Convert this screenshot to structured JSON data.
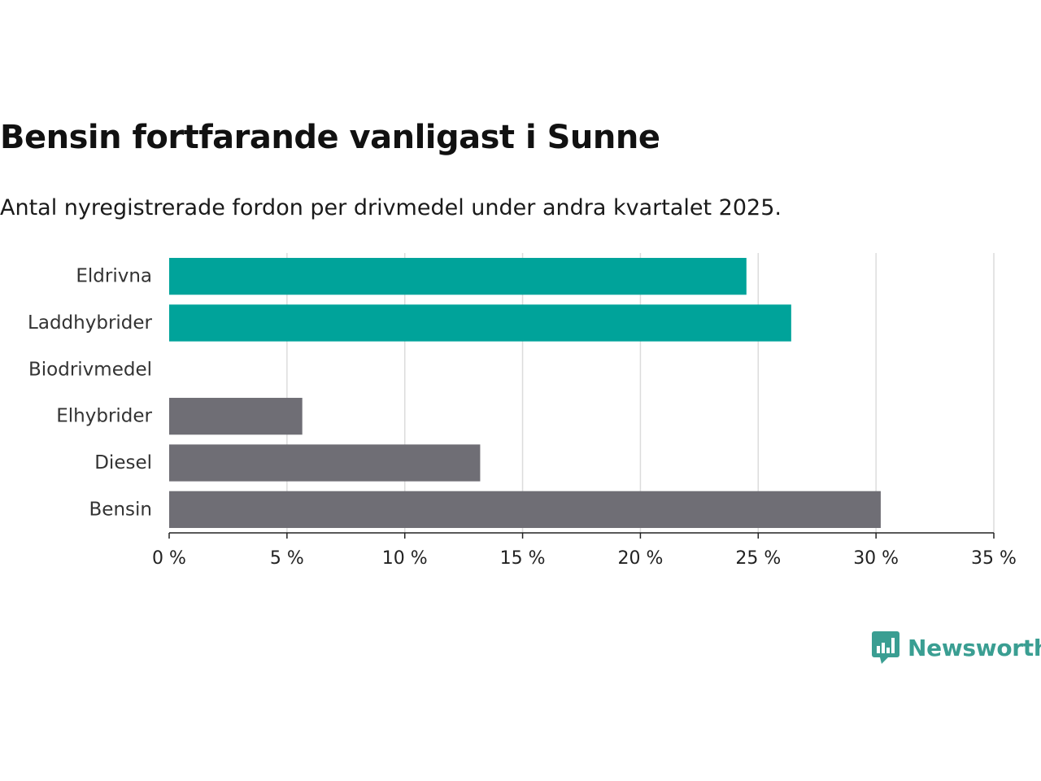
{
  "header": {
    "title": "Bensin fortfarande vanligast i Sunne",
    "subtitle": "Antal nyregistrerade fordon per drivmedel under andra kvartalet 2025."
  },
  "brand": {
    "name": "Newsworthy",
    "color": "#3a9e92",
    "icon": "bar-chart-speech-bubble-icon"
  },
  "chart_data": {
    "type": "bar",
    "orientation": "horizontal",
    "categories": [
      "Eldrivna",
      "Laddhybrider",
      "Biodrivmedel",
      "Elhybrider",
      "Diesel",
      "Bensin"
    ],
    "values": [
      24.5,
      26.4,
      0,
      5.65,
      13.2,
      30.2
    ],
    "colors": [
      "#00a39a",
      "#00a39a",
      "#00a39a",
      "#6f6e75",
      "#6f6e75",
      "#6f6e75"
    ],
    "xlim": [
      0,
      35
    ],
    "xticks": [
      0,
      5,
      10,
      15,
      20,
      25,
      30,
      35
    ],
    "xtick_labels": [
      "0 %",
      "5 %",
      "10 %",
      "15 %",
      "20 %",
      "25 %",
      "30 %",
      "35 %"
    ],
    "grid": true,
    "xlabel": "",
    "ylabel": ""
  }
}
